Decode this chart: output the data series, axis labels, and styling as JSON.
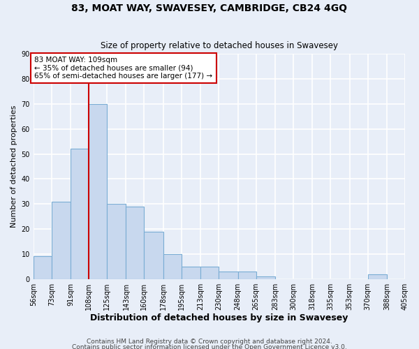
{
  "title": "83, MOAT WAY, SWAVESEY, CAMBRIDGE, CB24 4GQ",
  "subtitle": "Size of property relative to detached houses in Swavesey",
  "xlabel": "Distribution of detached houses by size in Swavesey",
  "ylabel": "Number of detached properties",
  "bar_color": "#c8d8ee",
  "bar_edge_color": "#7aadd4",
  "bg_color": "#e8eef8",
  "grid_color": "#ffffff",
  "bin_edges": [
    56,
    73,
    91,
    108,
    125,
    143,
    160,
    178,
    195,
    213,
    230,
    248,
    265,
    283,
    300,
    318,
    335,
    353,
    370,
    388,
    405
  ],
  "bin_labels": [
    "56sqm",
    "73sqm",
    "91sqm",
    "108sqm",
    "125sqm",
    "143sqm",
    "160sqm",
    "178sqm",
    "195sqm",
    "213sqm",
    "230sqm",
    "248sqm",
    "265sqm",
    "283sqm",
    "300sqm",
    "318sqm",
    "335sqm",
    "353sqm",
    "370sqm",
    "388sqm",
    "405sqm"
  ],
  "values": [
    9,
    31,
    52,
    70,
    30,
    29,
    19,
    10,
    5,
    5,
    3,
    3,
    1,
    0,
    0,
    0,
    0,
    0,
    2,
    0
  ],
  "vline_x": 108,
  "vline_color": "#cc0000",
  "annotation_text": "83 MOAT WAY: 109sqm\n← 35% of detached houses are smaller (94)\n65% of semi-detached houses are larger (177) →",
  "annotation_box_color": "#ffffff",
  "annotation_box_edge": "#cc0000",
  "ylim": [
    0,
    90
  ],
  "yticks": [
    0,
    10,
    20,
    30,
    40,
    50,
    60,
    70,
    80,
    90
  ],
  "footer1": "Contains HM Land Registry data © Crown copyright and database right 2024.",
  "footer2": "Contains public sector information licensed under the Open Government Licence v3.0."
}
